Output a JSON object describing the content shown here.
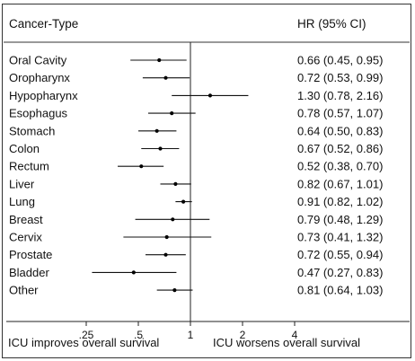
{
  "chart_data": {
    "type": "forest",
    "header_left": "Cancer-Type",
    "header_right": "HR (95% CI)",
    "xscale": "log",
    "xlim": [
      0.25,
      4
    ],
    "reference_line": 1,
    "x_ticks": [
      {
        "value": 0.25,
        "label": ".25"
      },
      {
        "value": 0.5,
        "label": ".5"
      },
      {
        "value": 1,
        "label": "1"
      },
      {
        "value": 2,
        "label": "2"
      },
      {
        "value": 4,
        "label": "4"
      }
    ],
    "caption_left": "ICU improves overall survival",
    "caption_right": "ICU worsens overall survival",
    "rows": [
      {
        "label": "Oral Cavity",
        "hr": 0.66,
        "lo": 0.45,
        "hi": 0.95,
        "text": "0.66 (0.45, 0.95)"
      },
      {
        "label": "Oropharynx",
        "hr": 0.72,
        "lo": 0.53,
        "hi": 0.99,
        "text": "0.72 (0.53, 0.99)"
      },
      {
        "label": "Hypopharynx",
        "hr": 1.3,
        "lo": 0.78,
        "hi": 2.16,
        "text": "1.30 (0.78, 2.16)"
      },
      {
        "label": "Esophagus",
        "hr": 0.78,
        "lo": 0.57,
        "hi": 1.07,
        "text": "0.78 (0.57, 1.07)"
      },
      {
        "label": "Stomach",
        "hr": 0.64,
        "lo": 0.5,
        "hi": 0.83,
        "text": "0.64 (0.50, 0.83)"
      },
      {
        "label": "Colon",
        "hr": 0.67,
        "lo": 0.52,
        "hi": 0.86,
        "text": "0.67 (0.52, 0.86)"
      },
      {
        "label": "Rectum",
        "hr": 0.52,
        "lo": 0.38,
        "hi": 0.7,
        "text": "0.52 (0.38, 0.70)"
      },
      {
        "label": "Liver",
        "hr": 0.82,
        "lo": 0.67,
        "hi": 1.01,
        "text": "0.82 (0.67, 1.01)"
      },
      {
        "label": "Lung",
        "hr": 0.91,
        "lo": 0.82,
        "hi": 1.02,
        "text": "0.91 (0.82, 1.02)"
      },
      {
        "label": "Breast",
        "hr": 0.79,
        "lo": 0.48,
        "hi": 1.29,
        "text": "0.79 (0.48, 1.29)"
      },
      {
        "label": "Cervix",
        "hr": 0.73,
        "lo": 0.41,
        "hi": 1.32,
        "text": "0.73 (0.41, 1.32)"
      },
      {
        "label": "Prostate",
        "hr": 0.72,
        "lo": 0.55,
        "hi": 0.94,
        "text": "0.72 (0.55, 0.94)"
      },
      {
        "label": "Bladder",
        "hr": 0.47,
        "lo": 0.27,
        "hi": 0.83,
        "text": "0.47 (0.27, 0.83)"
      },
      {
        "label": "Other",
        "hr": 0.81,
        "lo": 0.64,
        "hi": 1.03,
        "text": "0.81 (0.64, 1.03)"
      }
    ]
  }
}
